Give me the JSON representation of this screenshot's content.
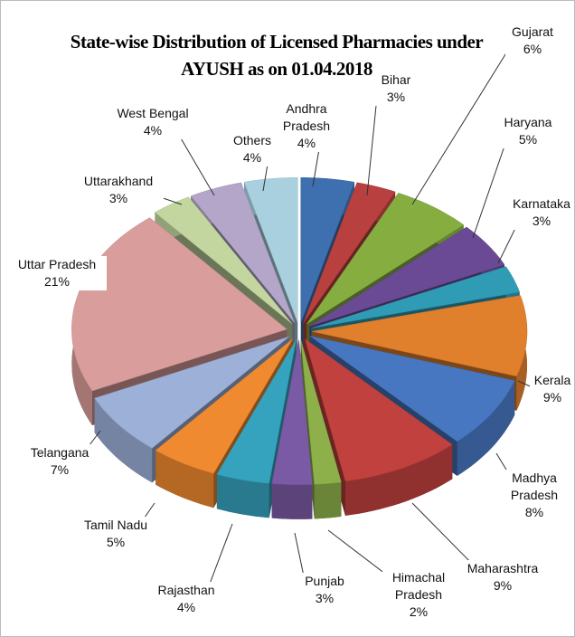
{
  "chart_data": {
    "type": "pie",
    "title": "State-wise Distribution of Licensed Pharmacies under AYUSH as on 01.04.2018",
    "categories": [
      "Andhra Pradesh",
      "Bihar",
      "Gujarat",
      "Haryana",
      "Karnataka",
      "Kerala",
      "Madhya Pradesh",
      "Maharashtra",
      "Himachal Pradesh",
      "Punjab",
      "Rajasthan",
      "Tamil Nadu",
      "Telangana",
      "Uttar Pradesh",
      "Uttarakhand",
      "West Bengal",
      "Others"
    ],
    "values": [
      4,
      3,
      6,
      5,
      3,
      9,
      8,
      9,
      2,
      3,
      4,
      5,
      7,
      21,
      3,
      4,
      4
    ],
    "value_labels": [
      "4%",
      "3%",
      "6%",
      "5%",
      "3%",
      "9%",
      "8%",
      "9%",
      "2%",
      "3%",
      "4%",
      "5%",
      "7%",
      "21%",
      "3%",
      "4%",
      "4%"
    ],
    "colors": [
      "#3e6fae",
      "#b8403f",
      "#86ad40",
      "#6a4a94",
      "#2f9bb5",
      "#e07f2c",
      "#4677c0",
      "#c0413e",
      "#8db04a",
      "#7a5aa4",
      "#36a3be",
      "#f08a30",
      "#9cb0d8",
      "#d99d9b",
      "#c3d6a0",
      "#b3a6c8",
      "#a8d0de"
    ]
  }
}
